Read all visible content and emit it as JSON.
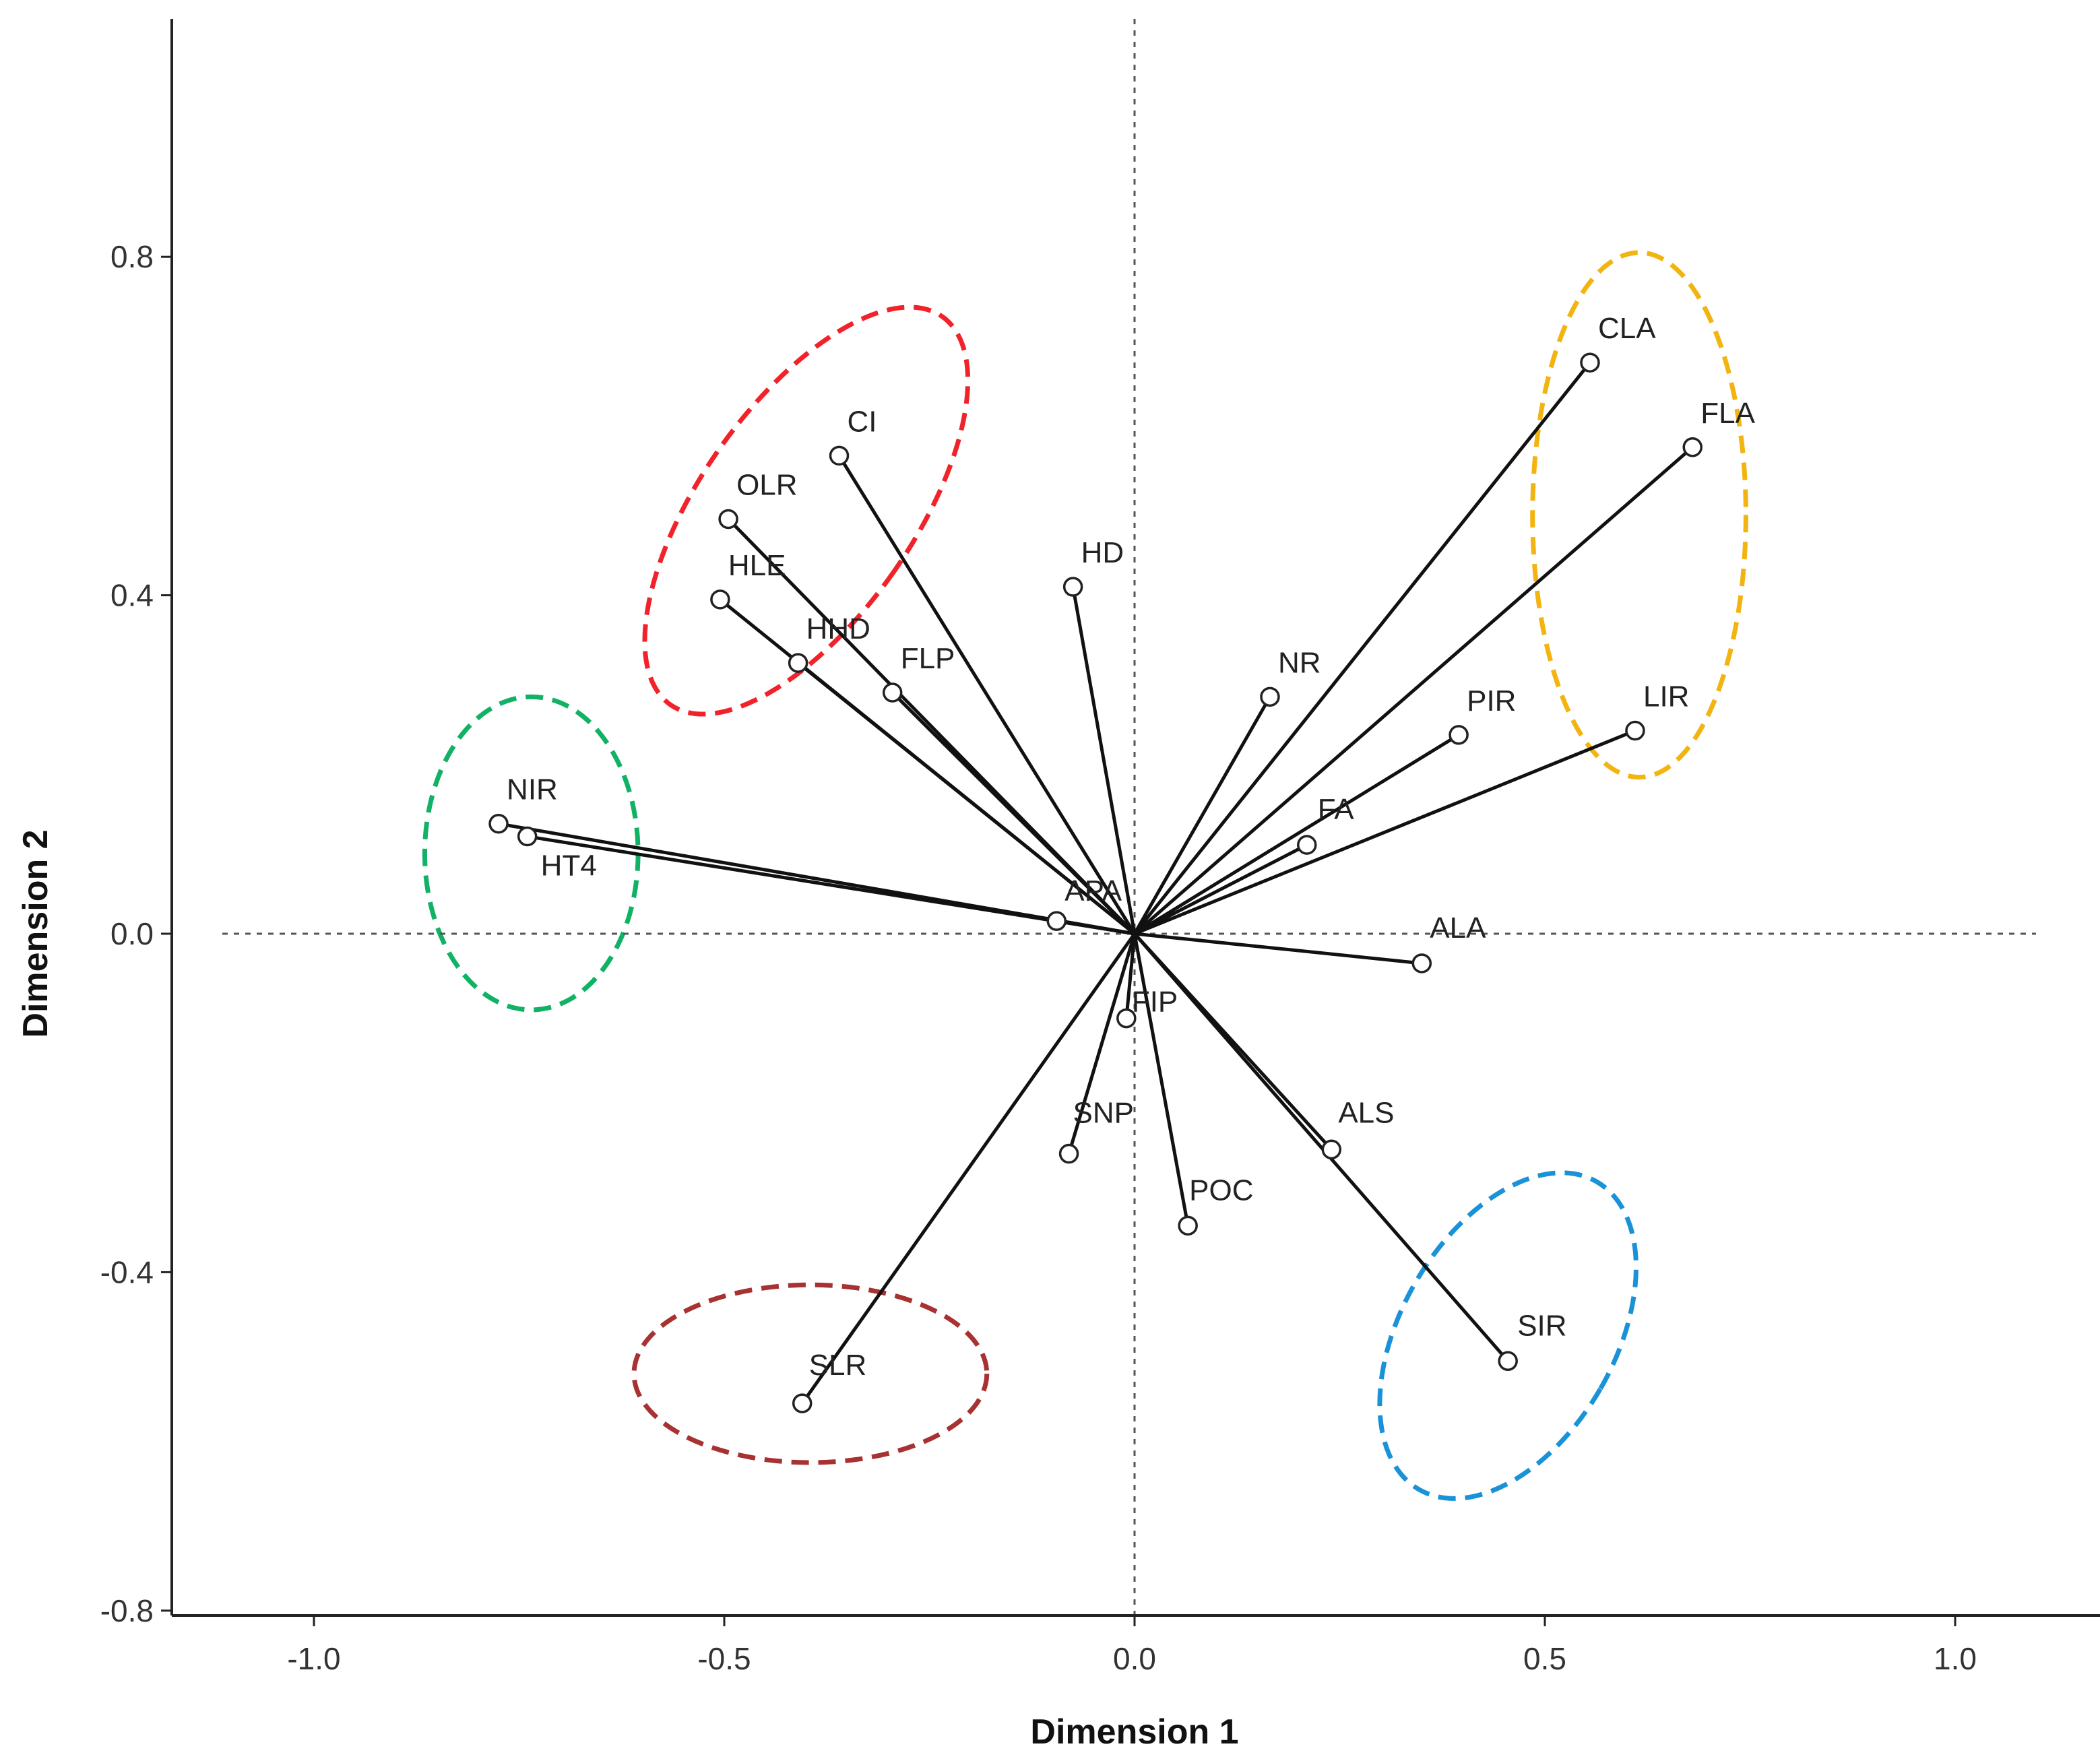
{
  "chart_data": {
    "type": "scatter",
    "title": "",
    "xlabel": "Dimension 1",
    "ylabel": "Dimension 2",
    "xlim": [
      -1.2,
      1.2
    ],
    "ylim": [
      -0.8,
      1.1
    ],
    "x_ticks": [
      "-1.0",
      "-0.5",
      "0.0",
      "0.5",
      "1.0"
    ],
    "y_ticks": [
      "-0.8",
      "-0.4",
      "0.0",
      "0.4",
      "0.8"
    ],
    "x_tick_values": [
      -1.0,
      -0.5,
      0.0,
      0.5,
      1.0
    ],
    "y_tick_values": [
      -0.8,
      -0.4,
      0.0,
      0.4,
      0.8
    ],
    "vectors_from_origin": true,
    "reference_lines": [
      {
        "orientation": "vertical",
        "value": 0.0,
        "style": "dotted"
      },
      {
        "orientation": "horizontal",
        "value": 0.0,
        "style": "dotted"
      }
    ],
    "points": [
      {
        "label": "CLA",
        "x": 0.555,
        "y": 0.675
      },
      {
        "label": "FLA",
        "x": 0.68,
        "y": 0.575
      },
      {
        "label": "CI",
        "x": -0.36,
        "y": 0.565
      },
      {
        "label": "OLR",
        "x": -0.495,
        "y": 0.49
      },
      {
        "label": "HLE",
        "x": -0.505,
        "y": 0.395
      },
      {
        "label": "HHD",
        "x": -0.41,
        "y": 0.32
      },
      {
        "label": "FLP",
        "x": -0.295,
        "y": 0.285
      },
      {
        "label": "HD",
        "x": -0.075,
        "y": 0.41
      },
      {
        "label": "NR",
        "x": 0.165,
        "y": 0.28
      },
      {
        "label": "PIR",
        "x": 0.395,
        "y": 0.235
      },
      {
        "label": "LIR",
        "x": 0.61,
        "y": 0.24
      },
      {
        "label": "FA",
        "x": 0.21,
        "y": 0.105
      },
      {
        "label": "NIR",
        "x": -0.775,
        "y": 0.13
      },
      {
        "label": "HT4",
        "x": -0.74,
        "y": 0.115
      },
      {
        "label": "APA",
        "x": -0.095,
        "y": 0.015
      },
      {
        "label": "ALA",
        "x": 0.35,
        "y": -0.035
      },
      {
        "label": "FIP",
        "x": -0.01,
        "y": -0.1
      },
      {
        "label": "SNP",
        "x": -0.08,
        "y": -0.26
      },
      {
        "label": "ALS",
        "x": 0.24,
        "y": -0.255
      },
      {
        "label": "POC",
        "x": 0.065,
        "y": -0.345
      },
      {
        "label": "SIR",
        "x": 0.455,
        "y": -0.505
      },
      {
        "label": "SLR",
        "x": -0.405,
        "y": -0.555
      }
    ],
    "groups": [
      {
        "name": "red-group",
        "color": "#f2222a",
        "members": [
          "CI",
          "OLR",
          "HLE",
          "HHD"
        ],
        "cx": -0.4,
        "cy": 0.5,
        "rx": 0.13,
        "ry": 0.28,
        "rot": 35
      },
      {
        "name": "yellow-group",
        "color": "#f2b411",
        "members": [
          "CLA",
          "FLA",
          "LIR"
        ],
        "cx": 0.615,
        "cy": 0.495,
        "rx": 0.13,
        "ry": 0.31,
        "rot": 0
      },
      {
        "name": "green-group",
        "color": "#11b265",
        "members": [
          "NIR",
          "HT4"
        ],
        "cx": -0.735,
        "cy": 0.095,
        "rx": 0.13,
        "ry": 0.185,
        "rot": 0
      },
      {
        "name": "darkred-group",
        "color": "#a83232",
        "members": [
          "SLR"
        ],
        "cx": -0.395,
        "cy": -0.52,
        "rx": 0.215,
        "ry": 0.105,
        "rot": 0
      },
      {
        "name": "blue-group",
        "color": "#1a92d8",
        "members": [
          "SIR"
        ],
        "cx": 0.455,
        "cy": -0.475,
        "rx": 0.13,
        "ry": 0.21,
        "rot": 30
      }
    ]
  }
}
